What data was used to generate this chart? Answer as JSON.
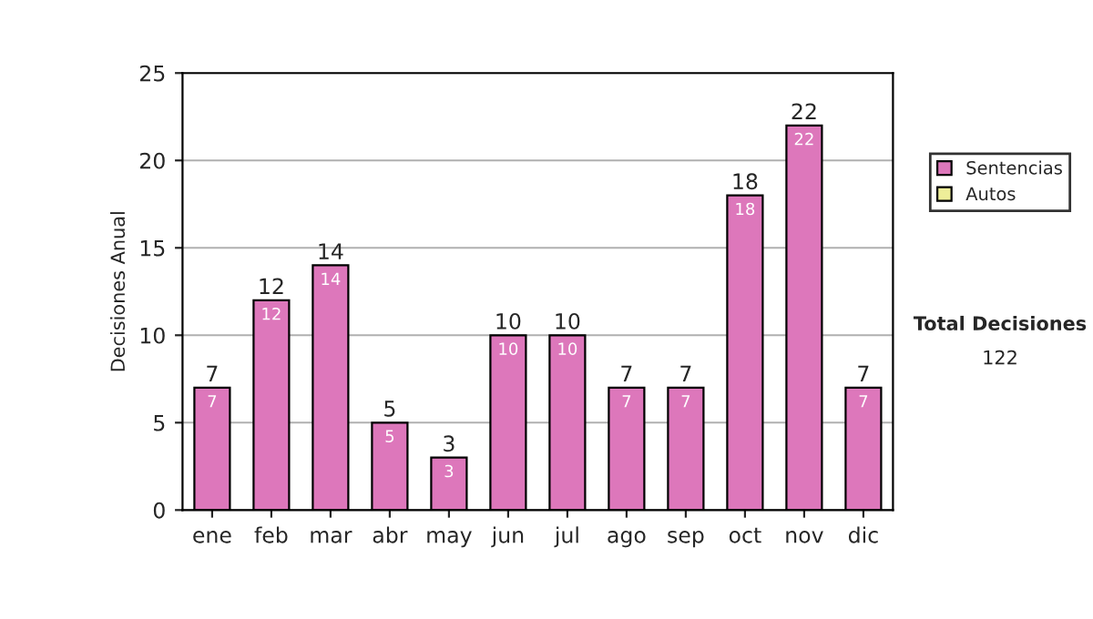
{
  "chart_data": {
    "type": "bar",
    "stacked": true,
    "categories": [
      "ene",
      "feb",
      "mar",
      "abr",
      "may",
      "jun",
      "jul",
      "ago",
      "sep",
      "oct",
      "nov",
      "dic"
    ],
    "series": [
      {
        "name": "Sentencias",
        "color": "#dd77bb",
        "values": [
          7,
          12,
          14,
          5,
          3,
          10,
          10,
          7,
          7,
          18,
          22,
          7
        ],
        "value_labels": [
          "7",
          "12",
          "14",
          "5",
          "3",
          "10",
          "10",
          "7",
          "7",
          "18",
          "22",
          "7"
        ]
      },
      {
        "name": "Autos",
        "color": "#eeee99",
        "values": [
          null,
          null,
          null,
          null,
          null,
          null,
          null,
          null,
          null,
          null,
          null,
          null
        ]
      }
    ],
    "totals": [
      "7",
      "12",
      "14",
      "5",
      "3",
      "10",
      "10",
      "7",
      "7",
      "18",
      "22",
      "7"
    ],
    "ylabel": "Decisiones Anual",
    "ylim": [
      0,
      25
    ],
    "yticks": [
      0,
      5,
      10,
      15,
      20,
      25
    ],
    "grid": "y",
    "legend": "right",
    "annotations": [
      "Total Decisiones",
      "122"
    ]
  }
}
